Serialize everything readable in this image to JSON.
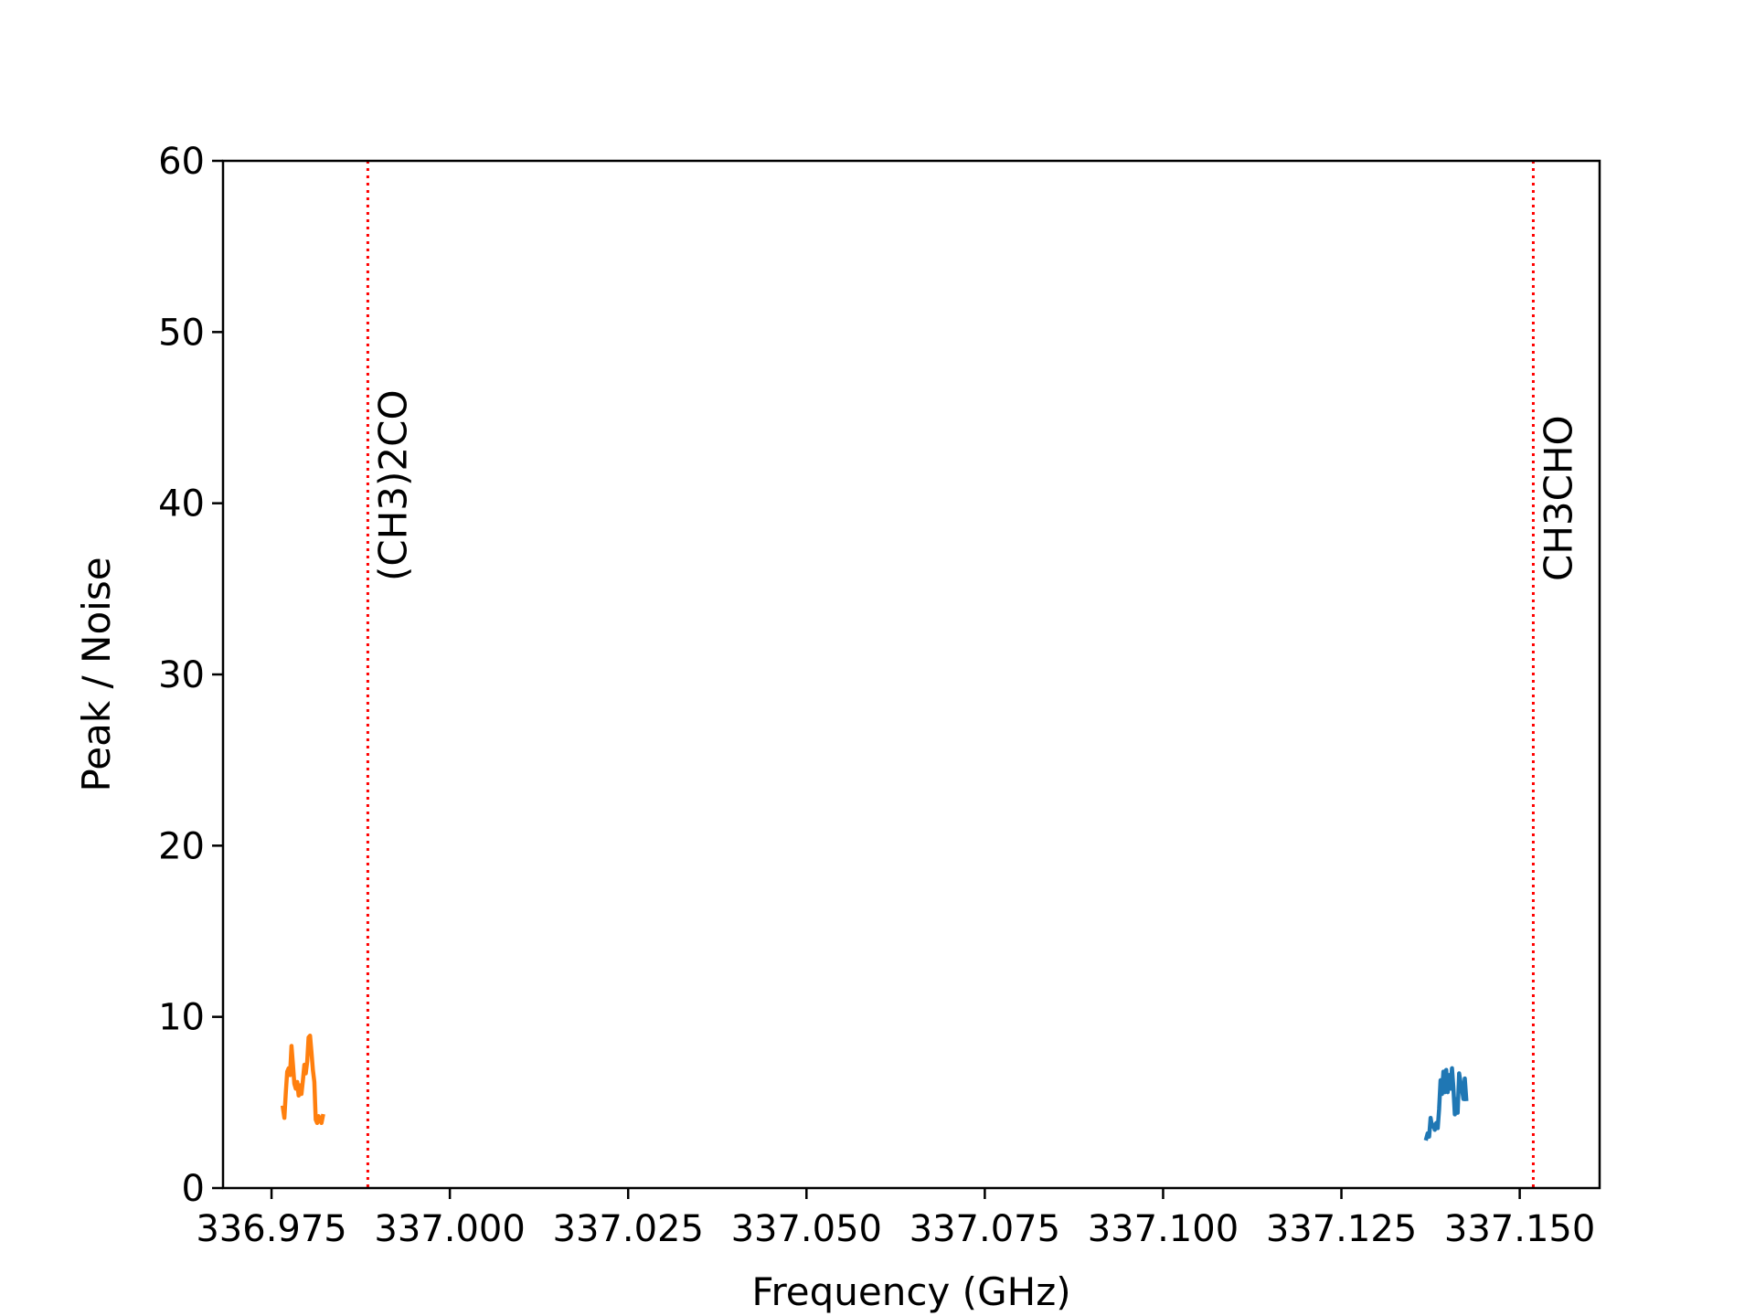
{
  "chart_data": {
    "type": "line",
    "title": "",
    "xlabel": "Frequency (GHz)",
    "ylabel": "Peak / Noise",
    "xlim": [
      336.9682,
      337.1612
    ],
    "ylim": [
      0,
      60
    ],
    "x_ticks": [
      336.975,
      337.0,
      337.025,
      337.05,
      337.075,
      337.1,
      337.125,
      337.15
    ],
    "x_tick_labels": [
      "336.975",
      "337.000",
      "337.025",
      "337.050",
      "337.075",
      "337.100",
      "337.125",
      "337.150"
    ],
    "y_ticks": [
      0,
      10,
      20,
      30,
      40,
      50,
      60
    ],
    "y_tick_labels": [
      "0",
      "10",
      "20",
      "30",
      "40",
      "50",
      "60"
    ],
    "grid": false,
    "legend": "none",
    "series": [
      {
        "color": "#ff7f0e",
        "x": [
          336.9766,
          336.9768,
          336.977,
          336.9772,
          336.9774,
          336.9776,
          336.9778,
          336.978,
          336.9782,
          336.9784,
          336.9786,
          336.9788,
          336.979,
          336.9792,
          336.9794,
          336.9796,
          336.9798,
          336.98,
          336.9802,
          336.9804,
          336.9806,
          336.9808,
          336.981,
          336.9812,
          336.9814,
          336.9816,
          336.9818,
          336.982,
          336.9822
        ],
        "y": [
          4.7,
          4.1,
          5.6,
          6.8,
          7.0,
          6.6,
          8.3,
          7.2,
          6.1,
          5.8,
          6.2,
          5.4,
          6.0,
          5.5,
          6.3,
          7.2,
          6.7,
          7.4,
          8.8,
          8.9,
          7.9,
          6.9,
          6.2,
          4.0,
          3.8,
          4.2,
          4.0,
          3.8,
          4.2
        ]
      },
      {
        "color": "#1f77b4",
        "x": [
          337.1369,
          337.1371,
          337.1373,
          337.1375,
          337.1377,
          337.1379,
          337.1381,
          337.1383,
          337.1385,
          337.1387,
          337.1389,
          337.1391,
          337.1393,
          337.1395,
          337.1397,
          337.1399,
          337.1401,
          337.1403,
          337.1405,
          337.1407,
          337.1409,
          337.1411,
          337.1413,
          337.1415,
          337.1417,
          337.1419,
          337.1421,
          337.1423,
          337.1425
        ],
        "y": [
          2.9,
          3.2,
          3.0,
          4.1,
          3.6,
          3.7,
          3.4,
          3.8,
          3.5,
          4.6,
          6.3,
          5.5,
          6.8,
          5.6,
          6.9,
          5.6,
          6.6,
          5.8,
          7.0,
          5.9,
          4.3,
          5.2,
          4.4,
          6.7,
          6.2,
          5.8,
          5.2,
          6.4,
          5.2
        ]
      }
    ],
    "reference_lines": [
      {
        "x": 336.9885,
        "label": "(CH3)2CO",
        "color": "#ff0000",
        "style": "dotted"
      },
      {
        "x": 337.1519,
        "label": "CH3CHO",
        "color": "#ff0000",
        "style": "dotted"
      }
    ]
  }
}
